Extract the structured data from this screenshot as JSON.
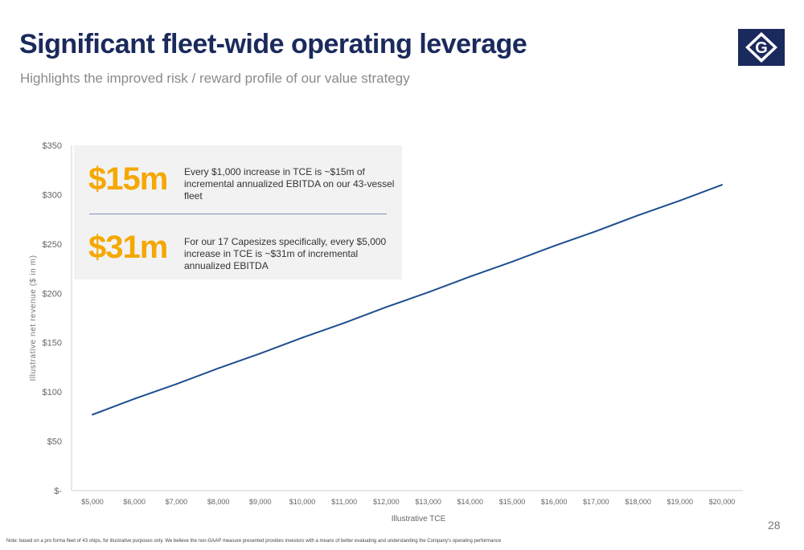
{
  "slide": {
    "title": "Significant fleet-wide operating leverage",
    "subtitle": "Highlights the improved risk / reward profile of our value strategy",
    "page_number": "28",
    "footnote": "Note: based on a pro forma fleet of 43 ships, for illustrative purposes only. We believe the non-GAAP measure presented provides investors with a means of better evaluating and understanding the Company's operating performance",
    "logo_letter": "G",
    "colors": {
      "title": "#1b2a5c",
      "accent": "#f5a800",
      "line": "#1f4e8f",
      "logo": "#1b2a5c"
    }
  },
  "callouts": [
    {
      "value": "$15m",
      "text": "Every $1,000 increase in TCE is ~$15m of incremental annualized EBITDA on our 43-vessel fleet"
    },
    {
      "value": "$31m",
      "text": "For our 17 Capesizes specifically, every $5,000 increase in TCE is ~$31m of incremental annualized EBITDA"
    }
  ],
  "chart_data": {
    "type": "line",
    "xlabel": "Illustrative TCE",
    "ylabel": "Illustrative net revenue ($ in m)",
    "categories": [
      "$5,000",
      "$6,000",
      "$7,000",
      "$8,000",
      "$9,000",
      "$10,000",
      "$11,000",
      "$12,000",
      "$13,000",
      "$14,000",
      "$15,000",
      "$16,000",
      "$17,000",
      "$18,000",
      "$19,000",
      "$20,000"
    ],
    "x": [
      5000,
      6000,
      7000,
      8000,
      9000,
      10000,
      11000,
      12000,
      13000,
      14000,
      15000,
      16000,
      17000,
      18000,
      19000,
      20000
    ],
    "series": [
      {
        "values": [
          77,
          93,
          108,
          124,
          139,
          155,
          170,
          186,
          201,
          217,
          232,
          248,
          263,
          279,
          294,
          310
        ]
      }
    ],
    "ylim": [
      0,
      350
    ],
    "yticks": [
      0,
      50,
      100,
      150,
      200,
      250,
      300,
      350
    ],
    "ytick_labels": [
      "$-",
      "$50",
      "$100",
      "$150",
      "$200",
      "$250",
      "$300",
      "$350"
    ],
    "grid": false,
    "legend": "none"
  }
}
